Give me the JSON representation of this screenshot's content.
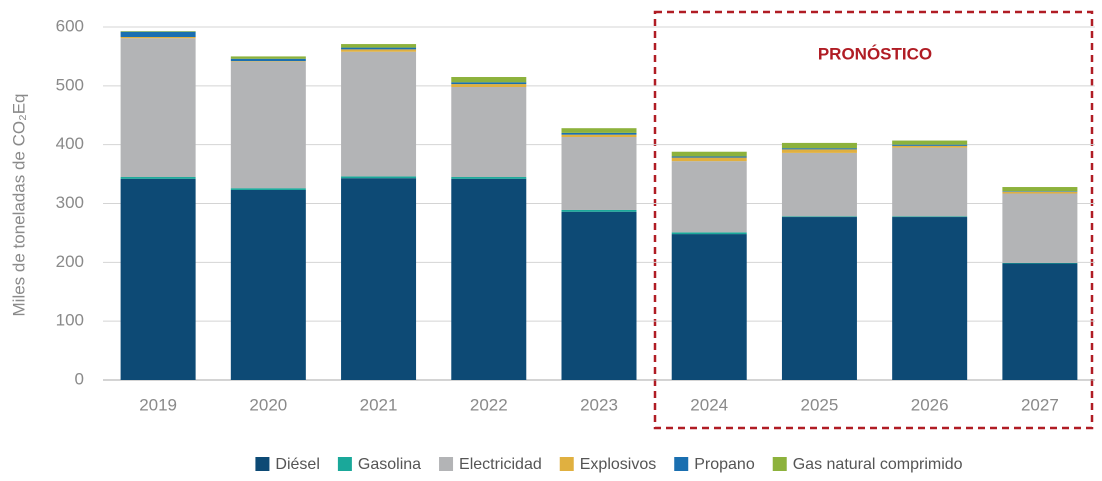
{
  "chart_data": {
    "type": "bar",
    "stacked": true,
    "ylabel": "Miles de toneladas de CO₂Eq",
    "annotation": "PRONÓSTICO",
    "categories": [
      "2019",
      "2020",
      "2021",
      "2022",
      "2023",
      "2024",
      "2025",
      "2026",
      "2027"
    ],
    "series": [
      {
        "name": "Diésel",
        "color": "#0d4a75",
        "values": [
          342,
          323,
          343,
          342,
          286,
          248,
          277,
          277,
          198
        ]
      },
      {
        "name": "Gasolina",
        "color": "#1aa89a",
        "values": [
          3,
          3,
          3,
          3,
          3,
          3,
          1,
          1,
          1
        ]
      },
      {
        "name": "Electricidad",
        "color": "#b3b4b6",
        "values": [
          236,
          215,
          212,
          153,
          124,
          121,
          108,
          117,
          118
        ]
      },
      {
        "name": "Explosivos",
        "color": "#e0b040",
        "values": [
          2,
          1,
          4,
          5,
          4,
          6,
          6,
          3,
          3
        ]
      },
      {
        "name": "Propano",
        "color": "#1a6fb0",
        "values": [
          9,
          4,
          3,
          3,
          3,
          2,
          2,
          2,
          1
        ]
      },
      {
        "name": "Gas natural comprimido",
        "color": "#8db23c",
        "values": [
          1,
          4,
          6,
          9,
          8,
          8,
          9,
          7,
          7
        ]
      }
    ],
    "ylim": [
      0,
      600
    ],
    "yticks": [
      0,
      100,
      200,
      300,
      400,
      500,
      600
    ],
    "grid": true
  }
}
